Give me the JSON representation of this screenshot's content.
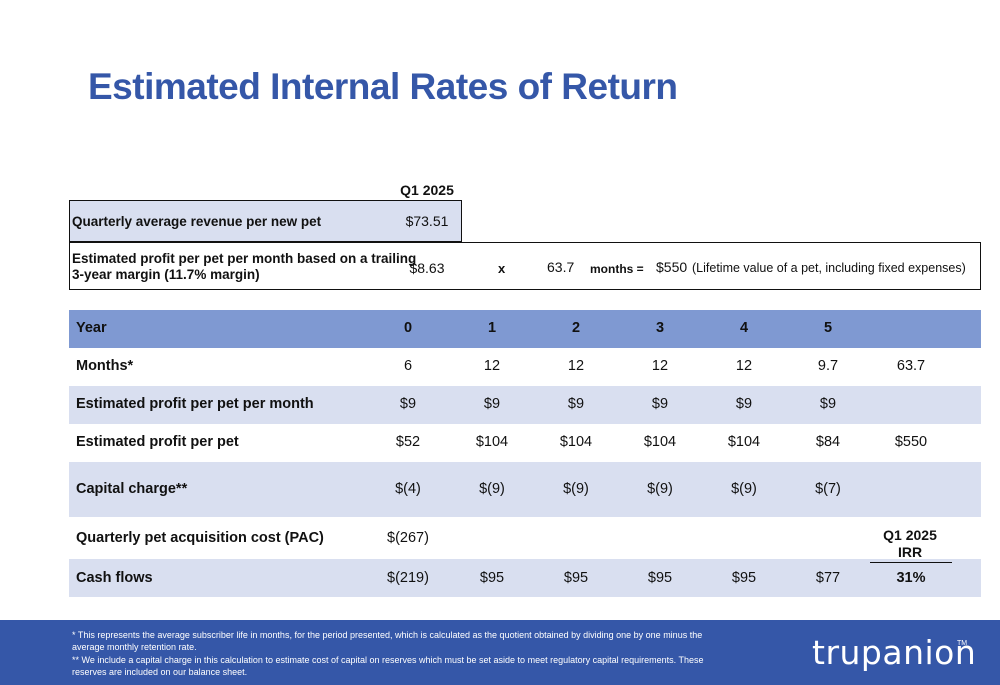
{
  "title": "Estimated Internal Rates of Return",
  "summary": {
    "period_header": "Q1 2025",
    "revenue_label": "Quarterly average revenue per new pet",
    "revenue_value": "$73.51",
    "profit_label_line1": "Estimated profit per pet per month based on a trailing",
    "profit_label_line2": "3-year margin (11.7% margin)",
    "profit_value": "$8.63",
    "multiply_symbol": "x",
    "months_value": "63.7",
    "months_label": "months =",
    "lifetime_value": "$550",
    "lifetime_note": "(Lifetime value of a pet, including fixed expenses)"
  },
  "table": {
    "header": {
      "label": "Year",
      "cells": [
        "0",
        "1",
        "2",
        "3",
        "4",
        "5",
        ""
      ]
    },
    "rows": [
      {
        "label": "Months*",
        "cells": [
          "6",
          "12",
          "12",
          "12",
          "12",
          "9.7",
          "63.7"
        ]
      },
      {
        "label": "Estimated profit per pet per month",
        "cells": [
          "$9",
          "$9",
          "$9",
          "$9",
          "$9",
          "$9",
          ""
        ]
      },
      {
        "label": "Estimated profit per pet",
        "cells": [
          "$52",
          "$104",
          "$104",
          "$104",
          "$104",
          "$84",
          "$550"
        ]
      },
      {
        "label": "Capital charge**",
        "cells": [
          "$(4)",
          "$(9)",
          "$(9)",
          "$(9)",
          "$(9)",
          "$(7)",
          ""
        ]
      },
      {
        "label": "Quarterly pet acquisition cost (PAC)",
        "cells": [
          "$(267)",
          "",
          "",
          "",
          "",
          "",
          ""
        ]
      },
      {
        "label": "Cash flows",
        "cells": [
          "$(219)",
          "$95",
          "$95",
          "$95",
          "$95",
          "$77",
          "31%"
        ]
      }
    ],
    "irr_header_line1": "Q1 2025",
    "irr_header_line2": "IRR"
  },
  "footer": {
    "note1_line1": "* This represents the average subscriber life in months, for the period presented, which is calculated as the quotient obtained by dividing one by one minus the",
    "note1_line2": "average monthly retention rate.",
    "note2_line1": "** We include a capital charge in this calculation to estimate cost of capital on reserves which must be set aside to meet regulatory capital requirements. These",
    "note2_line2": "reserves are included on our balance sheet.",
    "logo_text": "trupanion",
    "logo_tm": "TM"
  },
  "colors": {
    "title": "#3557a8",
    "header_row": "#7f99d2",
    "alt_row": "#d9dff0",
    "footer": "#3557a8"
  }
}
